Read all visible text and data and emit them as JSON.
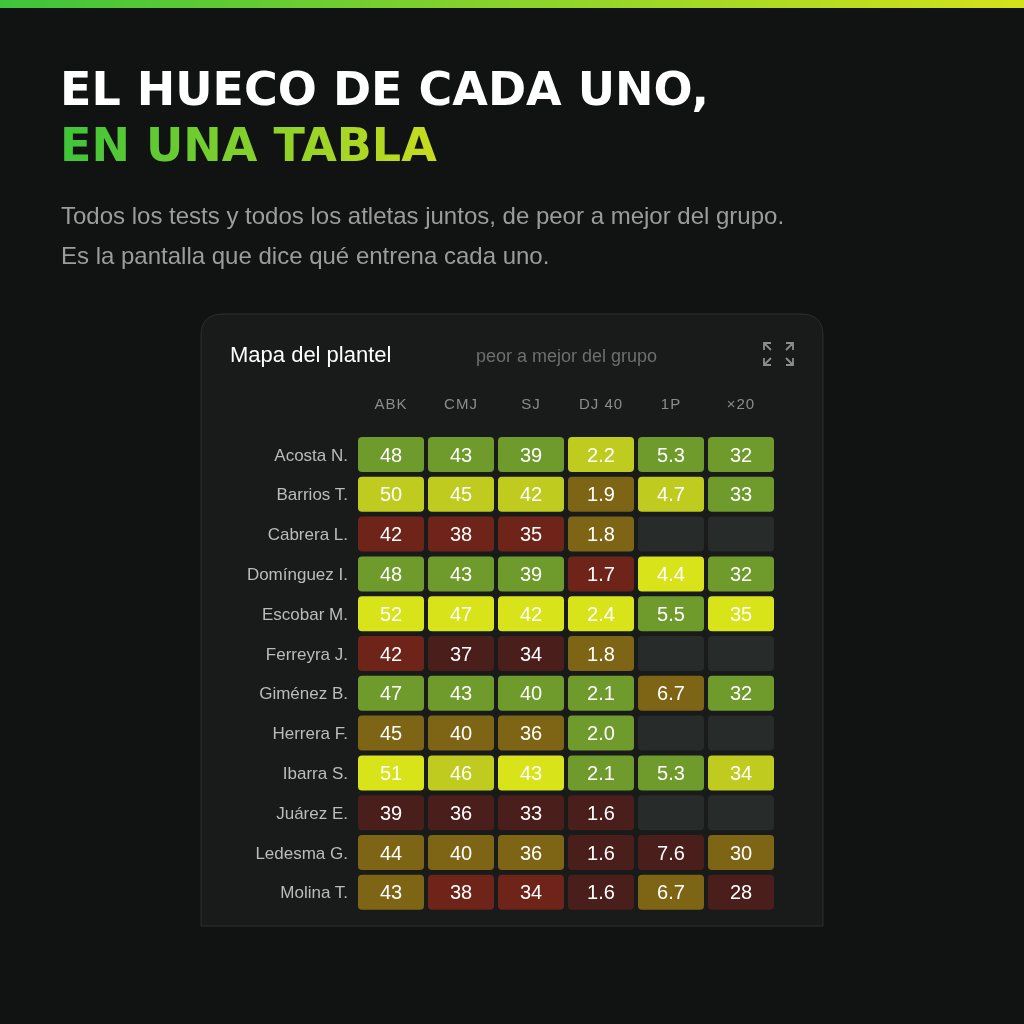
{
  "chart_data": {
    "type": "heatmap",
    "title": "EL HUECO DE CADA UNO, EN UNA TABLA",
    "subtitle": "Todos los tests y todos los atletas juntos, de peor a mejor del grupo. Es la pantalla que dice qué entrena cada uno.",
    "annotations": [
      "Mapa del plantel",
      "peor a mejor del grupo"
    ],
    "data_labels": true,
    "cell_labels": [
      [
        "48",
        "43",
        "39",
        "2.2",
        "5.3",
        "32"
      ],
      [
        "50",
        "45",
        "42",
        "1.9",
        "4.7",
        "33"
      ],
      [
        "42",
        "38",
        "35",
        "1.8",
        null,
        null
      ],
      [
        "48",
        "43",
        "39",
        "1.7",
        "4.4",
        "32"
      ],
      [
        "52",
        "47",
        "42",
        "2.4",
        "5.5",
        "35"
      ],
      [
        "42",
        "37",
        "34",
        "1.8",
        null,
        null
      ],
      [
        "47",
        "43",
        "40",
        "2.1",
        "6.7",
        "32"
      ],
      [
        "45",
        "40",
        "36",
        "2.0",
        null,
        null
      ],
      [
        "51",
        "46",
        "43",
        "2.1",
        "5.3",
        "34"
      ],
      [
        "39",
        "36",
        "33",
        "1.6",
        null,
        null
      ],
      [
        "44",
        "40",
        "36",
        "1.6",
        "7.6",
        "30"
      ],
      [
        "43",
        "38",
        "34",
        "1.6",
        "6.7",
        "28"
      ]
    ],
    "categories": [
      "ABK",
      "CMJ",
      "SJ",
      "DJ 40",
      "1P",
      "×20"
    ],
    "y_categories": [
      "Acosta N.",
      "Barrios T.",
      "Cabrera L.",
      "Domínguez I.",
      "Escobar M.",
      "Ferreyra J.",
      "Giménez B.",
      "Herrera F.",
      "Ibarra S.",
      "Juárez E.",
      "Ledesma G.",
      "Molina T."
    ],
    "cells": [
      [
        48,
        43,
        39,
        2.2,
        5.3,
        32
      ],
      [
        50,
        45,
        42,
        1.9,
        4.7,
        33
      ],
      [
        42,
        38,
        35,
        1.8,
        null,
        null
      ],
      [
        48,
        43,
        39,
        1.7,
        4.4,
        32
      ],
      [
        52,
        47,
        42,
        2.4,
        5.5,
        35
      ],
      [
        42,
        37,
        34,
        1.8,
        null,
        null
      ],
      [
        47,
        43,
        40,
        2.1,
        6.7,
        32
      ],
      [
        45,
        40,
        36,
        2.0,
        null,
        null
      ],
      [
        51,
        46,
        43,
        2.1,
        5.3,
        34
      ],
      [
        39,
        36,
        33,
        1.6,
        null,
        null
      ],
      [
        44,
        40,
        36,
        1.6,
        7.6,
        30
      ],
      [
        43,
        38,
        34,
        1.6,
        6.7,
        28
      ]
    ],
    "colors": [
      [
        "#6f9a2c",
        "#6f9a2c",
        "#6f9a2c",
        "#bfcc1f",
        "#6f9a2c",
        "#6f9a2c"
      ],
      [
        "#bfcc1f",
        "#bfcc1f",
        "#bfcc1f",
        "#7d6515",
        "#bfcc1f",
        "#6f9a2c"
      ],
      [
        "#6e2419",
        "#6e2419",
        "#6e2419",
        "#7d6515",
        null,
        null
      ],
      [
        "#6f9a2c",
        "#6f9a2c",
        "#6f9a2c",
        "#6e2419",
        "#d8e31a",
        "#6f9a2c"
      ],
      [
        "#d8e31a",
        "#d8e31a",
        "#d8e31a",
        "#d8e31a",
        "#6f9a2c",
        "#d8e31a"
      ],
      [
        "#6e2419",
        "#4a1e1a",
        "#4a1e1a",
        "#7d6515",
        null,
        null
      ],
      [
        "#6f9a2c",
        "#6f9a2c",
        "#6f9a2c",
        "#6f9a2c",
        "#7d6515",
        "#6f9a2c"
      ],
      [
        "#7d6515",
        "#7d6515",
        "#7d6515",
        "#6f9a2c",
        null,
        null
      ],
      [
        "#d8e31a",
        "#bfcc1f",
        "#d8e31a",
        "#6f9a2c",
        "#6f9a2c",
        "#bfcc1f"
      ],
      [
        "#4a1e1a",
        "#4a1e1a",
        "#4a1e1a",
        "#4a1e1a",
        null,
        null
      ],
      [
        "#7d6515",
        "#7d6515",
        "#7d6515",
        "#4a1e1a",
        "#4a1e1a",
        "#7d6515"
      ],
      [
        "#7d6515",
        "#6e2419",
        "#6e2419",
        "#4a1e1a",
        "#7d6515",
        "#4a1e1a"
      ]
    ]
  }
}
